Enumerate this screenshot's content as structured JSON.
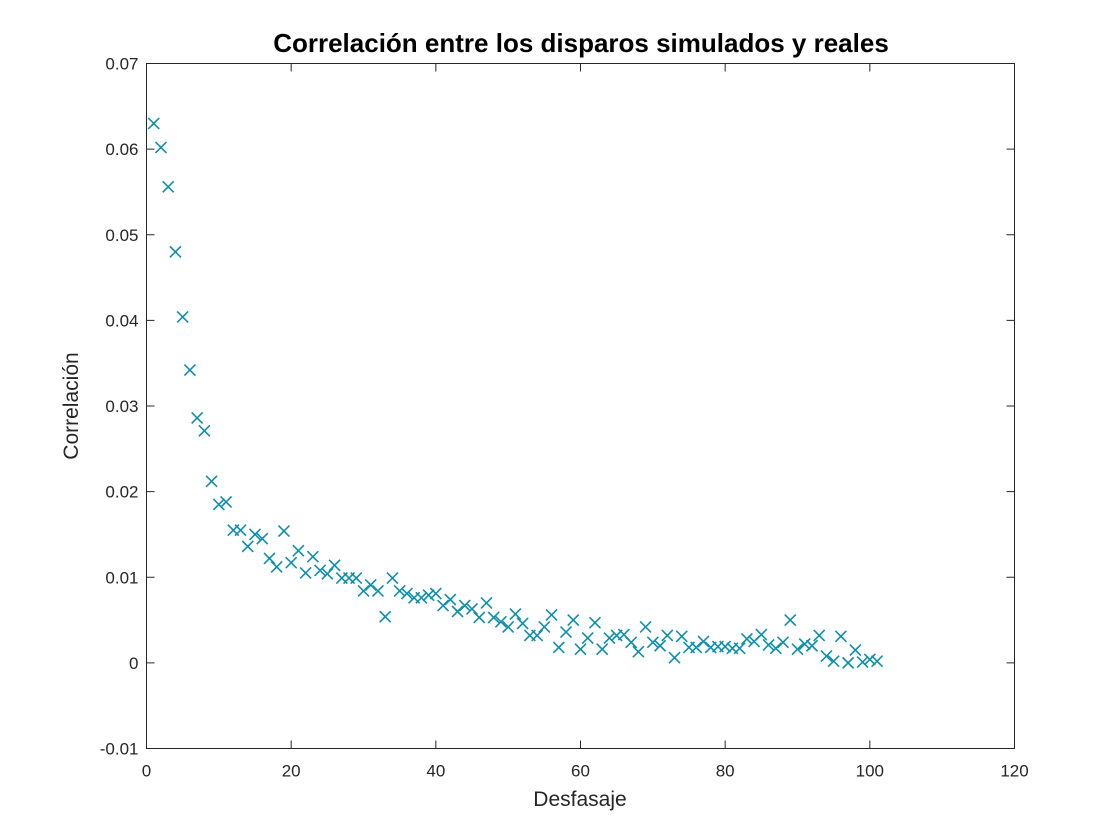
{
  "chart_data": {
    "type": "scatter",
    "title": "Correlación entre los disparos simulados y reales",
    "xlabel": "Desfasaje",
    "ylabel": "Correlación",
    "xlim": [
      0,
      120
    ],
    "ylim": [
      -0.01,
      0.07
    ],
    "xticks": [
      0,
      20,
      40,
      60,
      80,
      100,
      120
    ],
    "yticks": [
      -0.01,
      0,
      0.01,
      0.02,
      0.03,
      0.04,
      0.05,
      0.06,
      0.07
    ],
    "xtick_labels": [
      "0",
      "20",
      "40",
      "60",
      "80",
      "100",
      "120"
    ],
    "ytick_labels": [
      "-0.01",
      "0",
      "0.01",
      "0.02",
      "0.03",
      "0.04",
      "0.05",
      "0.06",
      "0.07"
    ],
    "grid": false,
    "marker": "x",
    "color": "#0f8fab",
    "series": [
      {
        "x": [
          1,
          2,
          3,
          4,
          5,
          6,
          7,
          8,
          9,
          10,
          11,
          12,
          13,
          14,
          15,
          16,
          17,
          18,
          19,
          20,
          21,
          22,
          23,
          24,
          25,
          26,
          27,
          28,
          29,
          30,
          31,
          32,
          33,
          34,
          35,
          36,
          37,
          38,
          39,
          40,
          41,
          42,
          43,
          44,
          45,
          46,
          47,
          48,
          49,
          50,
          51,
          52,
          53,
          54,
          55,
          56,
          57,
          58,
          59,
          60,
          61,
          62,
          63,
          64,
          65,
          66,
          67,
          68,
          69,
          70,
          71,
          72,
          73,
          74,
          75,
          76,
          77,
          78,
          79,
          80,
          81,
          82,
          83,
          84,
          85,
          86,
          87,
          88,
          89,
          90,
          91,
          92,
          93,
          94,
          95,
          96,
          97,
          98,
          99,
          100,
          101
        ],
        "y": [
          0.063,
          0.0602,
          0.0556,
          0.048,
          0.0404,
          0.0342,
          0.0286,
          0.0271,
          0.0212,
          0.0185,
          0.0188,
          0.0155,
          0.0155,
          0.0136,
          0.015,
          0.0145,
          0.0122,
          0.0112,
          0.0154,
          0.0117,
          0.0131,
          0.0105,
          0.0124,
          0.0108,
          0.0104,
          0.0114,
          0.0099,
          0.0099,
          0.0099,
          0.0084,
          0.0091,
          0.0084,
          0.0054,
          0.0099,
          0.0084,
          0.0081,
          0.0076,
          0.0076,
          0.0079,
          0.0081,
          0.0067,
          0.0074,
          0.006,
          0.0067,
          0.0063,
          0.0053,
          0.007,
          0.0053,
          0.0048,
          0.0042,
          0.0057,
          0.0046,
          0.0032,
          0.0032,
          0.0042,
          0.0056,
          0.0018,
          0.0036,
          0.005,
          0.0016,
          0.0029,
          0.0047,
          0.0016,
          0.0029,
          0.0032,
          0.0033,
          0.0024,
          0.0013,
          0.0042,
          0.0024,
          0.002,
          0.0032,
          0.0006,
          0.0031,
          0.0018,
          0.0018,
          0.0025,
          0.0018,
          0.0019,
          0.0019,
          0.0017,
          0.0017,
          0.0028,
          0.0025,
          0.0033,
          0.0021,
          0.0017,
          0.0024,
          0.005,
          0.0016,
          0.0022,
          0.002,
          0.0032,
          0.0008,
          0.0002,
          0.0031,
          0.0,
          0.0015,
          0.0001,
          0.0004,
          0.0002
        ]
      }
    ]
  }
}
